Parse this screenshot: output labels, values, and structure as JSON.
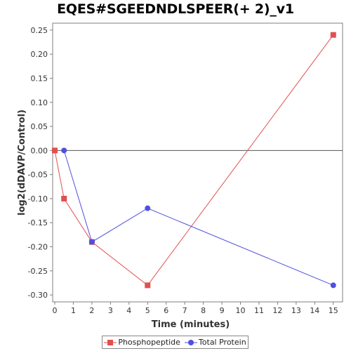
{
  "chart_data": {
    "type": "line",
    "title": "EQES#SGEEDNDLSPEER(+ 2)_v1",
    "xlabel": "Time (minutes)",
    "ylabel": "log2(dDAVP/Control)",
    "xlim": [
      0,
      15.5
    ],
    "ylim": [
      -0.31,
      0.26
    ],
    "xticks": [
      0,
      1,
      2,
      3,
      4,
      5,
      6,
      7,
      8,
      9,
      10,
      11,
      12,
      13,
      14,
      15
    ],
    "yticks": [
      0.25,
      0.2,
      0.15,
      0.1,
      0.05,
      0.0,
      -0.05,
      -0.1,
      -0.15,
      -0.2,
      -0.25,
      -0.3
    ],
    "ytick_labels": [
      "0.25",
      "0.20",
      "0.15",
      "0.10",
      "0.05",
      "0.00",
      "-0.05",
      "-0.10",
      "-0.15",
      "-0.20",
      "-0.25",
      "-0.30"
    ],
    "zero_line": true,
    "legend_position": "bottom",
    "series": [
      {
        "name": "Phosphopeptide",
        "color": "#e05050",
        "marker": "square",
        "x": [
          0,
          0.5,
          2,
          5,
          15
        ],
        "y": [
          0.0,
          -0.1,
          -0.19,
          -0.28,
          0.24
        ]
      },
      {
        "name": "Total Protein",
        "color": "#5050e0",
        "marker": "circle",
        "x": [
          0.5,
          2,
          5,
          15
        ],
        "y": [
          0.0,
          -0.19,
          -0.12,
          -0.28
        ]
      }
    ]
  }
}
